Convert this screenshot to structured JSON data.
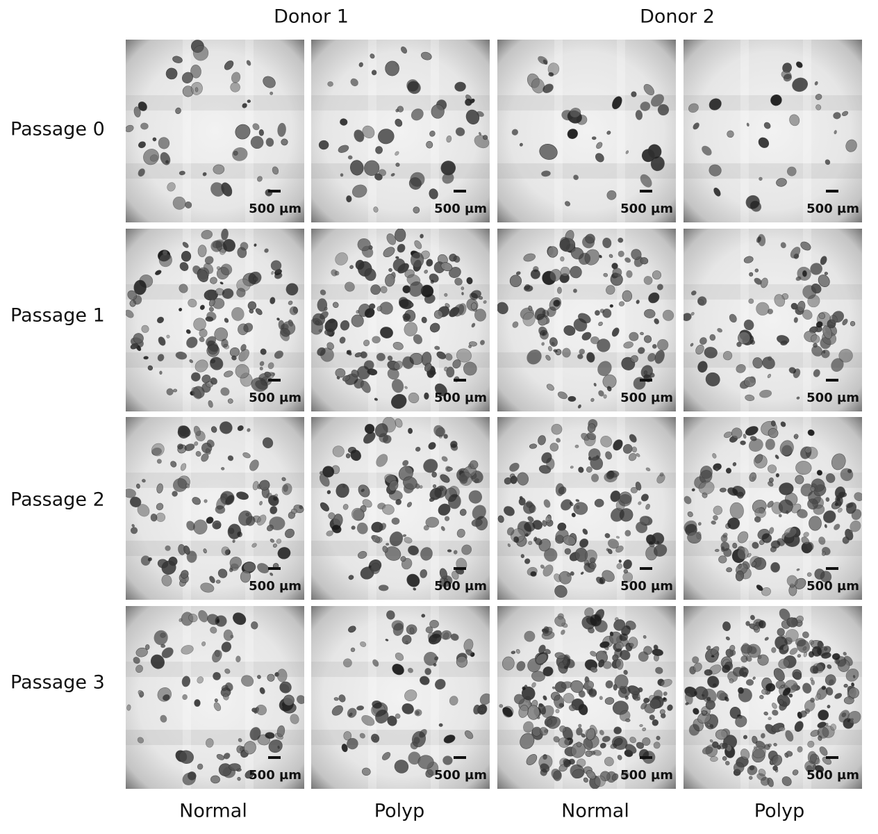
{
  "header": {
    "donors": [
      "Donor 1",
      "Donor 2"
    ]
  },
  "rows": [
    "Passage 0",
    "Passage 1",
    "Passage 2",
    "Passage 3"
  ],
  "columns": [
    "Normal",
    "Polyp",
    "Normal",
    "Polyp"
  ],
  "panels": [
    [
      {
        "scale_label": "500 µm"
      },
      {
        "scale_label": "500 µm"
      },
      {
        "scale_label": "500 µm"
      },
      {
        "scale_label": "500 µm"
      }
    ],
    [
      {
        "scale_label": "500 µm"
      },
      {
        "scale_label": "500 µm"
      },
      {
        "scale_label": "500 µm"
      },
      {
        "scale_label": "500 µm"
      }
    ],
    [
      {
        "scale_label": "500 µm"
      },
      {
        "scale_label": "500 µm"
      },
      {
        "scale_label": "500 µm"
      },
      {
        "scale_label": "500 µm"
      }
    ],
    [
      {
        "scale_label": "500 µm"
      },
      {
        "scale_label": "500 µm"
      },
      {
        "scale_label": "500 µm"
      },
      {
        "scale_label": "500 µm"
      }
    ]
  ]
}
